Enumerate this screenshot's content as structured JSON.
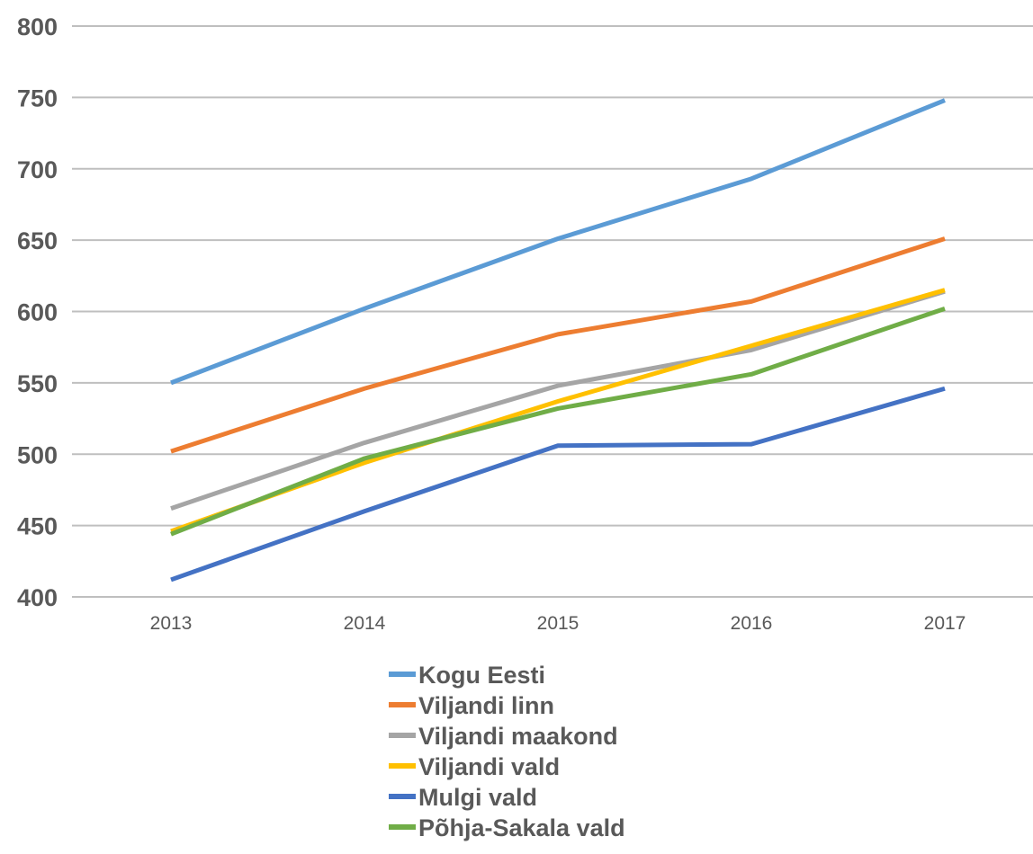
{
  "chart_data": {
    "type": "line",
    "title": "",
    "xlabel": "",
    "ylabel": "",
    "x": [
      "2013",
      "2014",
      "2015",
      "2016",
      "2017"
    ],
    "ylim": [
      400,
      800
    ],
    "yticks": [
      400,
      450,
      500,
      550,
      600,
      650,
      700,
      750,
      800
    ],
    "grid": true,
    "legend_position": "bottom",
    "series": [
      {
        "name": "Kogu Eesti",
        "color": "#5b9bd5",
        "values": [
          550,
          602,
          651,
          693,
          748
        ]
      },
      {
        "name": "Viljandi linn",
        "color": "#ed7d31",
        "values": [
          502,
          546,
          584,
          607,
          651
        ]
      },
      {
        "name": "Viljandi maakond",
        "color": "#a5a5a5",
        "values": [
          462,
          508,
          548,
          573,
          614
        ]
      },
      {
        "name": "Viljandi vald",
        "color": "#ffc000",
        "values": [
          446,
          494,
          537,
          576,
          615
        ]
      },
      {
        "name": "Mulgi vald",
        "color": "#4472c4",
        "values": [
          412,
          460,
          506,
          507,
          546
        ]
      },
      {
        "name": "Põhja-Sakala vald",
        "color": "#70ad47",
        "values": [
          444,
          497,
          532,
          556,
          602
        ]
      }
    ]
  }
}
